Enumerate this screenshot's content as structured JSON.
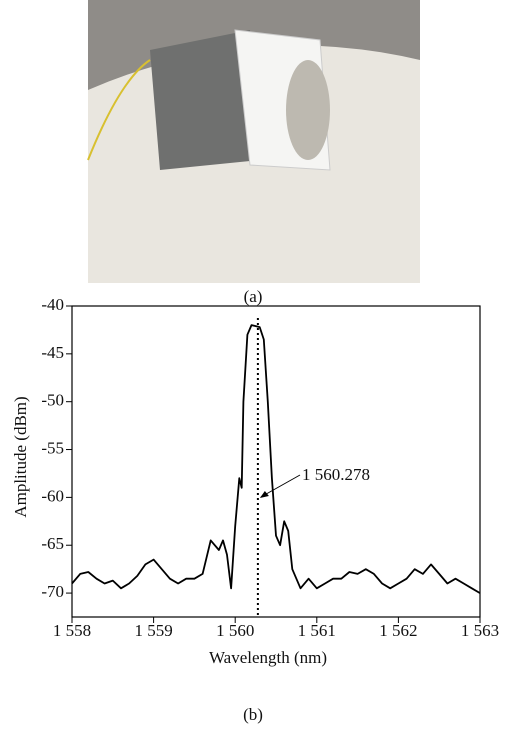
{
  "panel_labels": [
    "(a)",
    "(b)"
  ],
  "chart_data": {
    "type": "line",
    "x_label": "Wavelength (nm)",
    "y_label": "Amplitude (dBm)",
    "xlim": [
      1558,
      1563
    ],
    "ylim": [
      -72.5,
      -40
    ],
    "xticks": [
      {
        "value": 1558,
        "label": "1 558"
      },
      {
        "value": 1559,
        "label": "1 559"
      },
      {
        "value": 1560,
        "label": "1 560"
      },
      {
        "value": 1561,
        "label": "1 561"
      },
      {
        "value": 1562,
        "label": "1 562"
      },
      {
        "value": 1563,
        "label": "1 563"
      }
    ],
    "yticks": [
      -70,
      -65,
      -60,
      -55,
      -50,
      -45,
      -40
    ],
    "peak_marker": {
      "value": 1560.278,
      "label": "1 560.278"
    },
    "series": [
      {
        "color": "#000000",
        "x": [
          1558.0,
          1558.1,
          1558.2,
          1558.3,
          1558.4,
          1558.5,
          1558.6,
          1558.7,
          1558.8,
          1558.9,
          1559.0,
          1559.1,
          1559.2,
          1559.3,
          1559.4,
          1559.5,
          1559.6,
          1559.7,
          1559.8,
          1559.85,
          1559.9,
          1559.95,
          1560.0,
          1560.05,
          1560.08,
          1560.1,
          1560.15,
          1560.2,
          1560.3,
          1560.35,
          1560.4,
          1560.45,
          1560.5,
          1560.55,
          1560.6,
          1560.65,
          1560.7,
          1560.8,
          1560.9,
          1561.0,
          1561.1,
          1561.2,
          1561.3,
          1561.4,
          1561.5,
          1561.6,
          1561.7,
          1561.8,
          1561.9,
          1562.0,
          1562.1,
          1562.2,
          1562.3,
          1562.4,
          1562.5,
          1562.6,
          1562.7,
          1562.8,
          1562.9,
          1563.0
        ],
        "values": [
          -69,
          -68,
          -67.8,
          -68.5,
          -69,
          -68.7,
          -69.5,
          -69,
          -68.2,
          -67,
          -66.5,
          -67.5,
          -68.5,
          -69,
          -68.5,
          -68.5,
          -68,
          -64.5,
          -65.5,
          -64.5,
          -66,
          -69.5,
          -63,
          -58,
          -59,
          -50,
          -43,
          -42,
          -42.2,
          -43.5,
          -50,
          -58,
          -64,
          -65,
          -62.5,
          -63.5,
          -67.5,
          -69.5,
          -68.5,
          -69.5,
          -69,
          -68.5,
          -68.5,
          -67.8,
          -68,
          -67.5,
          -68,
          -69,
          -69.5,
          -69,
          -68.5,
          -67.5,
          -68,
          -67,
          -68,
          -69,
          -68.5,
          -69,
          -69.5,
          -70
        ]
      }
    ]
  }
}
